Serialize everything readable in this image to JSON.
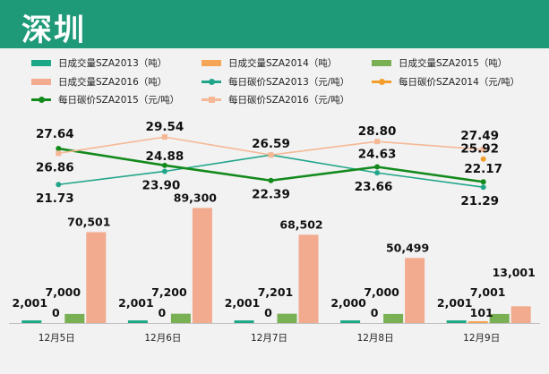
{
  "header": {
    "title": "深圳"
  },
  "colors": {
    "title_bg": "#1f9a78",
    "vol2013": "#1aa886",
    "vol2014": "#f4a656",
    "vol2015": "#79b054",
    "vol2016": "#f2ab8e",
    "price2013": "#22a68a",
    "price2014": "#f59d2a",
    "price2015": "#138a1c",
    "price2016": "#f5b896"
  },
  "chart_data": {
    "type": "bar",
    "categories": [
      "12月5日",
      "12月6日",
      "12月7日",
      "12月8日",
      "12月9日"
    ],
    "legend_position": "top",
    "grid": false,
    "series": [
      {
        "key": "vol2013",
        "name": "日成交量SZA2013（吨）",
        "kind": "bar",
        "values": [
          2001,
          2001,
          2001,
          2000,
          2001
        ],
        "labels": [
          "2,001",
          "2,001",
          "2,001",
          "2,000",
          "2,001"
        ]
      },
      {
        "key": "vol2014",
        "name": "日成交量SZA2014（吨）",
        "kind": "bar",
        "values": [
          0,
          0,
          0,
          0,
          101
        ],
        "labels": [
          "0",
          "0",
          "0",
          "0",
          "101"
        ]
      },
      {
        "key": "vol2015",
        "name": "日成交量SZA2015（吨）",
        "kind": "bar",
        "values": [
          7000,
          7200,
          7201,
          7000,
          7001
        ],
        "labels": [
          "7,000",
          "7,200",
          "7,201",
          "7,000",
          "7,001"
        ]
      },
      {
        "key": "vol2016",
        "name": "日成交量SZA2016（吨）",
        "kind": "bar",
        "values": [
          70501,
          89300,
          68502,
          50499,
          13001
        ],
        "labels": [
          "70,501",
          "89,300",
          "68,502",
          "50,499",
          "13,001"
        ]
      },
      {
        "key": "price2013",
        "name": "每日碳价SZA2013（元/吨）",
        "kind": "line",
        "marker": "circle",
        "values": [
          21.73,
          23.9,
          26.59,
          23.66,
          21.29
        ],
        "labels": [
          "21.73",
          "23.90",
          "26.59",
          "23.66",
          "21.29"
        ]
      },
      {
        "key": "price2014",
        "name": "每日碳价SZA2014（元/吨）",
        "kind": "line",
        "marker": "circle",
        "values": [
          null,
          null,
          null,
          null,
          25.92
        ],
        "labels": [
          "",
          "",
          "",
          "",
          "25.92"
        ]
      },
      {
        "key": "price2015",
        "name": "每日碳价SZA2015（元/吨）",
        "kind": "line",
        "marker": "circle",
        "values": [
          27.64,
          24.88,
          22.39,
          24.63,
          22.17
        ],
        "labels": [
          "27.64",
          "24.88",
          "22.39",
          "24.63",
          "22.17"
        ]
      },
      {
        "key": "price2016",
        "name": "每日碳价SZA2016（元/吨）",
        "kind": "line",
        "marker": "square",
        "values": [
          26.86,
          29.54,
          26.59,
          28.8,
          27.49
        ],
        "labels": [
          "26.86",
          "29.54",
          "",
          "28.80",
          "27.49"
        ]
      }
    ]
  }
}
